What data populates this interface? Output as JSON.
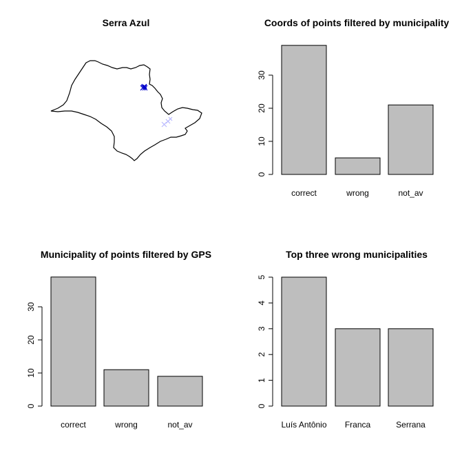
{
  "chart_data": [
    {
      "type": "map",
      "title": "Serra Azul",
      "points": [
        {
          "label": "filtered-points",
          "color": "#0000cc"
        },
        {
          "label": "outlier-points",
          "color": "#b8b8ff"
        }
      ]
    },
    {
      "type": "bar",
      "title": "Coords of points filtered by municipality",
      "categories": [
        "correct",
        "wrong",
        "not_av"
      ],
      "values": [
        39,
        5,
        21
      ],
      "ylim": [
        0,
        40
      ],
      "yticks": [
        "0",
        "10",
        "20",
        "30"
      ],
      "bar_color": "#bebebe"
    },
    {
      "type": "bar",
      "title": "Municipality of points filtered by GPS",
      "categories": [
        "correct",
        "wrong",
        "not_av"
      ],
      "values": [
        39,
        11,
        9
      ],
      "ylim": [
        0,
        40
      ],
      "yticks": [
        "0",
        "10",
        "20",
        "30"
      ],
      "bar_color": "#bebebe"
    },
    {
      "type": "bar",
      "title": "Top three wrong municipalities",
      "categories": [
        "Luís Antônio",
        "Franca",
        "Serrana"
      ],
      "values": [
        5,
        3,
        3
      ],
      "ylim": [
        0,
        5
      ],
      "yticks": [
        "0",
        "1",
        "2",
        "3",
        "4",
        "5"
      ],
      "bar_color": "#bebebe"
    }
  ]
}
